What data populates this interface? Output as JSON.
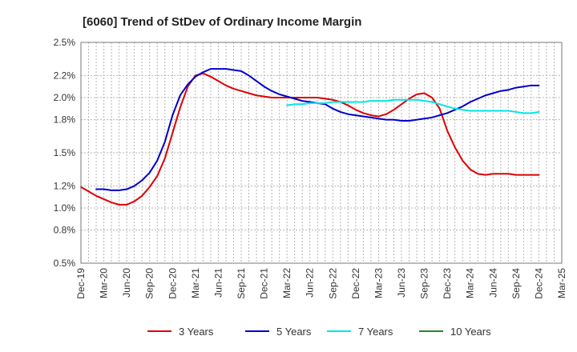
{
  "chart_data": {
    "type": "line",
    "title": "[6060]  Trend of StDev of Ordinary Income Margin",
    "xlabel": "",
    "ylabel": "",
    "x_ticks": [
      "Dec-19",
      "Mar-20",
      "Jun-20",
      "Sep-20",
      "Dec-20",
      "Mar-21",
      "Jun-21",
      "Sep-21",
      "Dec-21",
      "Mar-22",
      "Jun-22",
      "Sep-22",
      "Dec-22",
      "Mar-23",
      "Jun-23",
      "Sep-23",
      "Dec-23",
      "Mar-24",
      "Jun-24",
      "Sep-24",
      "Dec-24",
      "Mar-25"
    ],
    "y_ticks": [
      "0.5%",
      "0.8%",
      "1.0%",
      "1.2%",
      "1.5%",
      "1.8%",
      "2.0%",
      "2.2%",
      "2.5%"
    ],
    "ylim": [
      0.5,
      2.5
    ],
    "grid": true,
    "legend_position": "bottom",
    "series": [
      {
        "name": "3 Years",
        "color": "#dd0000",
        "points": [
          [
            "Dec-19",
            1.19
          ],
          [
            "Jan-20",
            1.15
          ],
          [
            "Feb-20",
            1.11
          ],
          [
            "Mar-20",
            1.08
          ],
          [
            "Apr-20",
            1.05
          ],
          [
            "May-20",
            1.03
          ],
          [
            "Jun-20",
            1.03
          ],
          [
            "Jul-20",
            1.06
          ],
          [
            "Aug-20",
            1.11
          ],
          [
            "Sep-20",
            1.19
          ],
          [
            "Oct-20",
            1.29
          ],
          [
            "Nov-20",
            1.45
          ],
          [
            "Dec-20",
            1.68
          ],
          [
            "Jan-21",
            1.91
          ],
          [
            "Feb-21",
            2.1
          ],
          [
            "Mar-21",
            2.2
          ],
          [
            "Apr-21",
            2.22
          ],
          [
            "May-21",
            2.19
          ],
          [
            "Jun-21",
            2.15
          ],
          [
            "Jul-21",
            2.11
          ],
          [
            "Aug-21",
            2.08
          ],
          [
            "Sep-21",
            2.06
          ],
          [
            "Oct-21",
            2.04
          ],
          [
            "Nov-21",
            2.02
          ],
          [
            "Dec-21",
            2.01
          ],
          [
            "Jan-22",
            2.0
          ],
          [
            "Feb-22",
            2.0
          ],
          [
            "Mar-22",
            2.0
          ],
          [
            "Apr-22",
            2.0
          ],
          [
            "May-22",
            2.0
          ],
          [
            "Jun-22",
            2.0
          ],
          [
            "Jul-22",
            2.0
          ],
          [
            "Aug-22",
            1.99
          ],
          [
            "Sep-22",
            1.98
          ],
          [
            "Oct-22",
            1.96
          ],
          [
            "Nov-22",
            1.93
          ],
          [
            "Dec-22",
            1.89
          ],
          [
            "Jan-23",
            1.86
          ],
          [
            "Feb-23",
            1.84
          ],
          [
            "Mar-23",
            1.83
          ],
          [
            "Apr-23",
            1.85
          ],
          [
            "May-23",
            1.89
          ],
          [
            "Jun-23",
            1.94
          ],
          [
            "Jul-23",
            1.99
          ],
          [
            "Aug-23",
            2.03
          ],
          [
            "Sep-23",
            2.04
          ],
          [
            "Oct-23",
            2.0
          ],
          [
            "Nov-23",
            1.9
          ],
          [
            "Dec-23",
            1.7
          ],
          [
            "Jan-24",
            1.55
          ],
          [
            "Feb-24",
            1.43
          ],
          [
            "Mar-24",
            1.35
          ],
          [
            "Apr-24",
            1.31
          ],
          [
            "May-24",
            1.3
          ],
          [
            "Jun-24",
            1.31
          ],
          [
            "Jul-24",
            1.31
          ],
          [
            "Aug-24",
            1.31
          ],
          [
            "Sep-24",
            1.3
          ],
          [
            "Oct-24",
            1.3
          ],
          [
            "Nov-24",
            1.3
          ],
          [
            "Dec-24",
            1.3
          ]
        ]
      },
      {
        "name": "5 Years",
        "color": "#0000cc",
        "points": [
          [
            "Feb-20",
            1.17
          ],
          [
            "Mar-20",
            1.17
          ],
          [
            "Apr-20",
            1.16
          ],
          [
            "May-20",
            1.16
          ],
          [
            "Jun-20",
            1.17
          ],
          [
            "Jul-20",
            1.2
          ],
          [
            "Aug-20",
            1.25
          ],
          [
            "Sep-20",
            1.32
          ],
          [
            "Oct-20",
            1.43
          ],
          [
            "Nov-20",
            1.6
          ],
          [
            "Dec-20",
            1.84
          ],
          [
            "Jan-21",
            2.02
          ],
          [
            "Feb-21",
            2.12
          ],
          [
            "Mar-21",
            2.19
          ],
          [
            "Apr-21",
            2.23
          ],
          [
            "May-21",
            2.26
          ],
          [
            "Jun-21",
            2.26
          ],
          [
            "Jul-21",
            2.26
          ],
          [
            "Aug-21",
            2.25
          ],
          [
            "Sep-21",
            2.24
          ],
          [
            "Oct-21",
            2.2
          ],
          [
            "Nov-21",
            2.15
          ],
          [
            "Dec-21",
            2.1
          ],
          [
            "Jan-22",
            2.06
          ],
          [
            "Feb-22",
            2.03
          ],
          [
            "Mar-22",
            2.01
          ],
          [
            "Apr-22",
            1.99
          ],
          [
            "May-22",
            1.97
          ],
          [
            "Jun-22",
            1.96
          ],
          [
            "Jul-22",
            1.95
          ],
          [
            "Aug-22",
            1.94
          ],
          [
            "Sep-22",
            1.9
          ],
          [
            "Oct-22",
            1.87
          ],
          [
            "Nov-22",
            1.85
          ],
          [
            "Dec-22",
            1.84
          ],
          [
            "Jan-23",
            1.83
          ],
          [
            "Feb-23",
            1.82
          ],
          [
            "Mar-23",
            1.81
          ],
          [
            "Apr-23",
            1.8
          ],
          [
            "May-23",
            1.8
          ],
          [
            "Jun-23",
            1.79
          ],
          [
            "Jul-23",
            1.79
          ],
          [
            "Aug-23",
            1.8
          ],
          [
            "Sep-23",
            1.81
          ],
          [
            "Oct-23",
            1.82
          ],
          [
            "Nov-23",
            1.84
          ],
          [
            "Dec-23",
            1.86
          ],
          [
            "Jan-24",
            1.89
          ],
          [
            "Feb-24",
            1.92
          ],
          [
            "Mar-24",
            1.96
          ],
          [
            "Apr-24",
            1.99
          ],
          [
            "May-24",
            2.02
          ],
          [
            "Jun-24",
            2.04
          ],
          [
            "Jul-24",
            2.06
          ],
          [
            "Aug-24",
            2.07
          ],
          [
            "Sep-24",
            2.09
          ],
          [
            "Oct-24",
            2.1
          ],
          [
            "Nov-24",
            2.11
          ],
          [
            "Dec-24",
            2.11
          ]
        ]
      },
      {
        "name": "7 Years",
        "color": "#00e5e5",
        "points": [
          [
            "Mar-22",
            1.93
          ],
          [
            "Apr-22",
            1.94
          ],
          [
            "May-22",
            1.94
          ],
          [
            "Jun-22",
            1.95
          ],
          [
            "Jul-22",
            1.95
          ],
          [
            "Aug-22",
            1.95
          ],
          [
            "Sep-22",
            1.96
          ],
          [
            "Oct-22",
            1.96
          ],
          [
            "Nov-22",
            1.96
          ],
          [
            "Dec-22",
            1.96
          ],
          [
            "Jan-23",
            1.96
          ],
          [
            "Feb-23",
            1.97
          ],
          [
            "Mar-23",
            1.97
          ],
          [
            "Apr-23",
            1.97
          ],
          [
            "May-23",
            1.98
          ],
          [
            "Jun-23",
            1.98
          ],
          [
            "Jul-23",
            1.98
          ],
          [
            "Aug-23",
            1.98
          ],
          [
            "Sep-23",
            1.97
          ],
          [
            "Oct-23",
            1.96
          ],
          [
            "Nov-23",
            1.94
          ],
          [
            "Dec-23",
            1.92
          ],
          [
            "Jan-24",
            1.9
          ],
          [
            "Feb-24",
            1.89
          ],
          [
            "Mar-24",
            1.88
          ],
          [
            "Apr-24",
            1.88
          ],
          [
            "May-24",
            1.88
          ],
          [
            "Jun-24",
            1.88
          ],
          [
            "Jul-24",
            1.88
          ],
          [
            "Aug-24",
            1.88
          ],
          [
            "Sep-24",
            1.87
          ],
          [
            "Oct-24",
            1.86
          ],
          [
            "Nov-24",
            1.86
          ],
          [
            "Dec-24",
            1.87
          ]
        ]
      },
      {
        "name": "10 Years",
        "color": "#228b22",
        "points": []
      }
    ]
  }
}
